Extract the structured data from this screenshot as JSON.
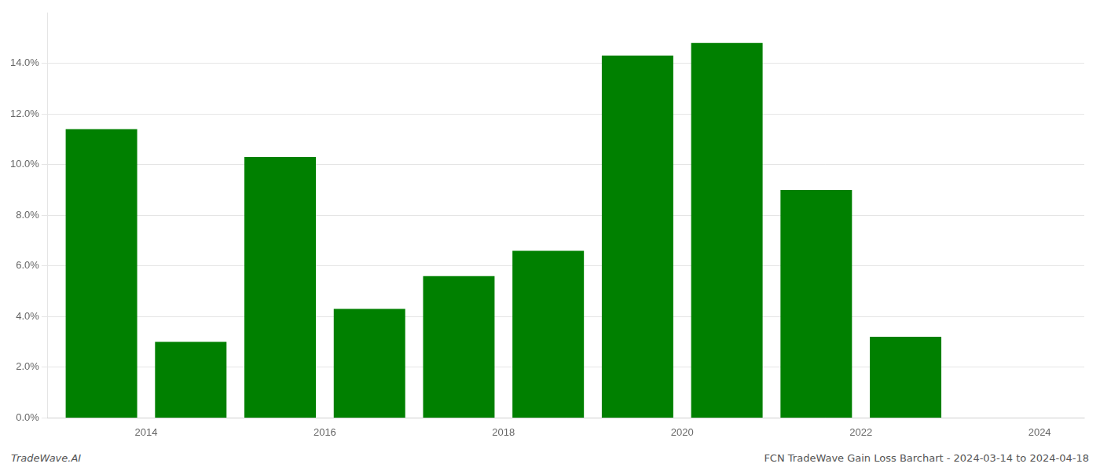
{
  "chart_data": {
    "type": "bar",
    "x": [
      2014,
      2015,
      2016,
      2017,
      2018,
      2019,
      2020,
      2021,
      2022,
      2023
    ],
    "values": [
      0.114,
      0.03,
      0.103,
      0.043,
      0.056,
      0.066,
      0.143,
      0.148,
      0.09,
      0.032
    ],
    "color": "#008000",
    "xlim": [
      2013.4,
      2025.0
    ],
    "xticks": [
      {
        "value": 2014.5,
        "label": "2014"
      },
      {
        "value": 2016.5,
        "label": "2016"
      },
      {
        "value": 2018.5,
        "label": "2018"
      },
      {
        "value": 2020.5,
        "label": "2020"
      },
      {
        "value": 2022.5,
        "label": "2022"
      },
      {
        "value": 2024.5,
        "label": "2024"
      }
    ],
    "ylim": [
      0,
      0.16
    ],
    "yticks": [
      {
        "value": 0.0,
        "label": "0.0%"
      },
      {
        "value": 0.02,
        "label": "2.0%"
      },
      {
        "value": 0.04,
        "label": "4.0%"
      },
      {
        "value": 0.06,
        "label": "6.0%"
      },
      {
        "value": 0.08,
        "label": "8.0%"
      },
      {
        "value": 0.1,
        "label": "10.0%"
      },
      {
        "value": 0.12,
        "label": "12.0%"
      },
      {
        "value": 0.14,
        "label": "14.0%"
      }
    ],
    "grid": "y",
    "annotations": [
      "TradeWave.AI",
      "FCN TradeWave Gain Loss Barchart - 2024-03-14 to 2024-04-18"
    ]
  }
}
